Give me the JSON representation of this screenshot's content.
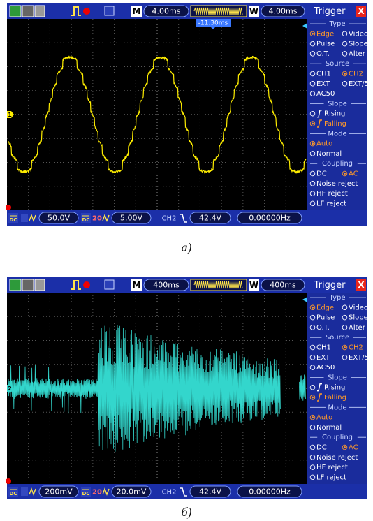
{
  "panels": [
    {
      "trace_color": "#ffee00",
      "marker": "1",
      "toolbar": {
        "timebase_label": "M",
        "timebase": "4.00ms",
        "window_label": "W",
        "window": "4.00ms",
        "trigger_offset": "-11.30ms"
      },
      "menu": {
        "title": "Trigger",
        "close": "X",
        "sections": [
          {
            "heading": "Type",
            "rows": [
              [
                {
                  "text": "Edge",
                  "selected": true
                },
                {
                  "text": "Video"
                }
              ],
              [
                {
                  "text": "Pulse"
                },
                {
                  "text": "Slope"
                }
              ],
              [
                {
                  "text": "O.T."
                },
                {
                  "text": "Alter"
                }
              ]
            ]
          },
          {
            "heading": "Source",
            "rows": [
              [
                {
                  "text": "CH1"
                },
                {
                  "text": "CH2",
                  "selected": true
                }
              ],
              [
                {
                  "text": "EXT"
                },
                {
                  "text": "EXT/5"
                }
              ],
              [
                {
                  "text": "AC50"
                }
              ]
            ]
          },
          {
            "heading": "Slope",
            "rows": [
              [
                {
                  "text": "Rising"
                }
              ],
              [
                {
                  "text": "Falling",
                  "selected": true
                }
              ]
            ]
          },
          {
            "heading": "Mode",
            "rows": [
              [
                {
                  "text": "Auto",
                  "selected": true
                }
              ],
              [
                {
                  "text": "Normal"
                }
              ]
            ]
          },
          {
            "heading": "Coupling",
            "rows": [
              [
                {
                  "text": "DC"
                },
                {
                  "text": "AC",
                  "selected": true
                }
              ],
              [
                {
                  "text": "Noise reject"
                }
              ],
              [
                {
                  "text": "HF reject"
                }
              ],
              [
                {
                  "text": "LF reject"
                }
              ]
            ]
          }
        ]
      },
      "status": {
        "ch1_coupling": "DC",
        "ch1_scale": "50.0V",
        "ch2_coupling": "DC",
        "bw_limit": "20",
        "ch2_scale": "5.00V",
        "trigger_source": "CH2",
        "trigger_level": "42.4V",
        "frequency": "0.00000Hz"
      },
      "caption": "а)"
    },
    {
      "trace_color": "#33d6cc",
      "marker": "2",
      "toolbar": {
        "timebase_label": "M",
        "timebase": "400ms",
        "window_label": "W",
        "window": "400ms"
      },
      "menu": {
        "title": "Trigger",
        "close": "X",
        "sections": [
          {
            "heading": "Type",
            "rows": [
              [
                {
                  "text": "Edge",
                  "selected": true
                },
                {
                  "text": "Video"
                }
              ],
              [
                {
                  "text": "Pulse"
                },
                {
                  "text": "Slope"
                }
              ],
              [
                {
                  "text": "O.T."
                },
                {
                  "text": "Alter"
                }
              ]
            ]
          },
          {
            "heading": "Source",
            "rows": [
              [
                {
                  "text": "CH1"
                },
                {
                  "text": "CH2",
                  "selected": true
                }
              ],
              [
                {
                  "text": "EXT"
                },
                {
                  "text": "EXT/5"
                }
              ],
              [
                {
                  "text": "AC50"
                }
              ]
            ]
          },
          {
            "heading": "Slope",
            "rows": [
              [
                {
                  "text": "Rising"
                }
              ],
              [
                {
                  "text": "Falling",
                  "selected": true
                }
              ]
            ]
          },
          {
            "heading": "Mode",
            "rows": [
              [
                {
                  "text": "Auto",
                  "selected": true
                }
              ],
              [
                {
                  "text": "Normal"
                }
              ]
            ]
          },
          {
            "heading": "Coupling",
            "rows": [
              [
                {
                  "text": "DC"
                },
                {
                  "text": "AC",
                  "selected": true
                }
              ],
              [
                {
                  "text": "Noise reject"
                }
              ],
              [
                {
                  "text": "HF reject"
                }
              ],
              [
                {
                  "text": "LF reject"
                }
              ]
            ]
          }
        ]
      },
      "status": {
        "ch1_coupling": "DC",
        "ch1_scale": "200mV",
        "ch2_coupling": "DC",
        "bw_limit": "20",
        "ch2_scale": "20.0mV",
        "trigger_source": "CH2",
        "trigger_level": "42.4V",
        "frequency": "0.00000Hz"
      },
      "caption": "б)"
    }
  ]
}
